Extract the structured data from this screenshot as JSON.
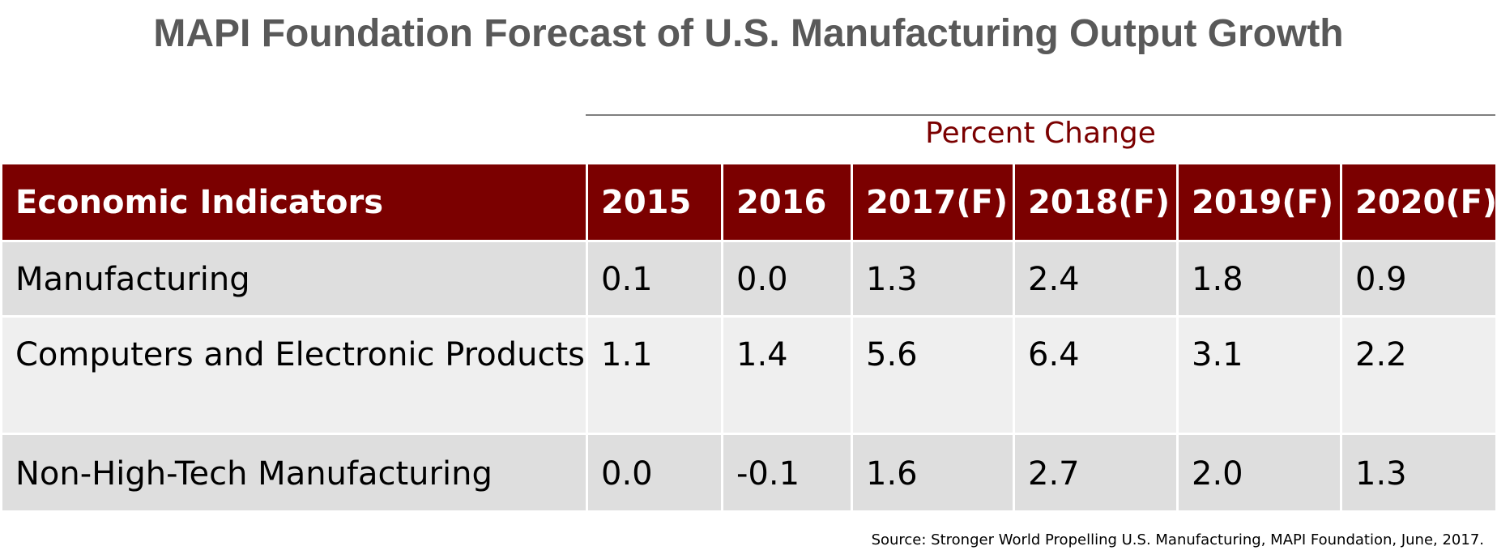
{
  "chart_data": {
    "type": "table",
    "title": "MAPI Foundation Forecast of U.S. Manufacturing Output Growth",
    "column_group_label": "Percent Change",
    "columns": [
      "Economic Indicators",
      "2015",
      "2016",
      "2017(F)",
      "2018(F)",
      "2019(F)",
      "2020(F)"
    ],
    "rows": [
      {
        "label": "Manufacturing",
        "values": [
          "0.1",
          "0.0",
          "1.3",
          "2.4",
          "1.8",
          "0.9"
        ]
      },
      {
        "label": "Computers and Electronic Products",
        "values": [
          "1.1",
          "1.4",
          "5.6",
          "6.4",
          "3.1",
          "2.2"
        ]
      },
      {
        "label": "Non-High-Tech Manufacturing",
        "values": [
          "0.0",
          "-0.1",
          "1.6",
          "2.7",
          "2.0",
          "1.3"
        ]
      }
    ],
    "source": "Source: Stronger World Propelling U.S. Manufacturing, MAPI Foundation, June, 2017."
  },
  "colors": {
    "header_background": "#7b0000",
    "group_label": "#7b0000",
    "title": "#595959",
    "row_band_1": "#dedede",
    "row_band_2": "#efefef"
  }
}
